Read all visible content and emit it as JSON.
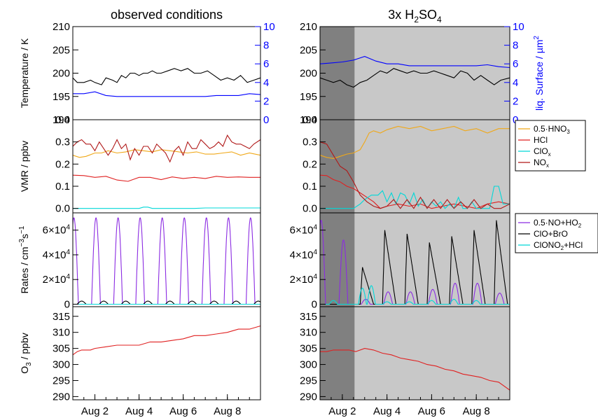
{
  "chart_data": [
    {
      "type": "line",
      "panel": "temperature",
      "column_titles": {
        "left": "observed conditions",
        "right_main": "3x H",
        "right_sub1": "2",
        "right_main2": "SO",
        "right_sub2": "4"
      },
      "ylabel": "Temperature / K",
      "ylim": [
        190,
        210
      ],
      "yticks": [
        "190",
        "195",
        "200",
        "205",
        "210"
      ],
      "y2label_main": "liq. Surface / µm",
      "y2label_sup": "2",
      "y2lim": [
        0,
        10
      ],
      "y2ticks": [
        "0",
        "2",
        "4",
        "6",
        "8",
        "10"
      ],
      "colors": {
        "temperature": "#000000",
        "surface": "#0000ff"
      },
      "left": {
        "temperature": {
          "x": [
            0.0,
            0.2,
            0.5,
            0.8,
            1.0,
            1.3,
            1.5,
            1.8,
            2.0,
            2.2,
            2.4,
            2.6,
            2.8,
            3.0,
            3.2,
            3.4,
            3.6,
            3.8,
            4.0,
            4.3,
            4.6,
            4.9,
            5.2,
            5.5,
            5.8,
            6.1,
            6.4,
            6.7,
            7.0,
            7.3,
            7.6,
            7.9,
            8.2,
            8.5
          ],
          "y": [
            199,
            198,
            198,
            198.5,
            198,
            197.5,
            199,
            198.5,
            198,
            199.5,
            199,
            200,
            200,
            199.5,
            200,
            200,
            200.5,
            200,
            200,
            200.5,
            201,
            200.5,
            201,
            200,
            200,
            200.5,
            199.5,
            198.5,
            199,
            198.5,
            199.5,
            198,
            198.5,
            199
          ]
        },
        "surface": {
          "x": [
            0.0,
            0.5,
            1.0,
            1.5,
            2.0,
            2.5,
            3.0,
            3.5,
            4.0,
            4.5,
            5.0,
            5.5,
            6.0,
            6.5,
            7.0,
            7.5,
            8.0,
            8.5
          ],
          "y": [
            2.8,
            2.8,
            3.0,
            2.6,
            2.5,
            2.5,
            2.5,
            2.5,
            2.5,
            2.5,
            2.5,
            2.5,
            2.5,
            2.6,
            2.6,
            2.6,
            2.8,
            2.7
          ]
        }
      },
      "right": {
        "temperature": {
          "x": [
            0.0,
            0.3,
            0.6,
            0.9,
            1.2,
            1.5,
            1.8,
            2.1,
            2.4,
            2.7,
            3.0,
            3.3,
            3.6,
            3.9,
            4.2,
            4.5,
            4.8,
            5.1,
            5.4,
            5.7,
            6.0,
            6.3,
            6.6,
            6.9,
            7.2,
            7.5,
            7.8,
            8.1,
            8.5
          ],
          "y": [
            199,
            198.5,
            198,
            198.5,
            197.5,
            197,
            198,
            198.5,
            199.5,
            200.5,
            200,
            201,
            200.5,
            200,
            200.5,
            200,
            200,
            200.5,
            200,
            199.5,
            199,
            200.5,
            200,
            198.5,
            199.5,
            198.5,
            197.5,
            198.5,
            199
          ]
        },
        "surface": {
          "x": [
            0.0,
            0.5,
            1.0,
            1.5,
            2.0,
            2.5,
            3.0,
            3.5,
            4.0,
            4.5,
            5.0,
            5.5,
            6.0,
            6.5,
            7.0,
            7.5,
            8.0,
            8.5
          ],
          "y": [
            6.0,
            6.1,
            6.2,
            6.4,
            6.8,
            6.3,
            6.0,
            6.0,
            5.8,
            5.8,
            5.8,
            5.8,
            5.8,
            5.8,
            5.8,
            5.9,
            5.7,
            5.6
          ]
        }
      }
    },
    {
      "type": "line",
      "panel": "vmr",
      "ylabel": "VMR / ppbv",
      "ylim": [
        -0.02,
        0.4
      ],
      "yticks": [
        "0.0",
        "0.1",
        "0.2",
        "0.3",
        "0.4"
      ],
      "legend": [
        {
          "pre": "0.5·HNO",
          "sub": "3",
          "color": "#f0a818"
        },
        {
          "pre": "HCl",
          "sub": "",
          "color": "#e02020"
        },
        {
          "pre": "ClO",
          "sub": "x",
          "color": "#00d8d8"
        },
        {
          "pre": "NO",
          "sub": "x",
          "color": "#b01818"
        }
      ],
      "left": {
        "hno3": {
          "x": [
            0,
            0.3,
            0.6,
            1.0,
            1.3,
            1.6,
            2.0,
            2.4,
            2.8,
            3.2,
            3.6,
            4.0,
            4.4,
            4.8,
            5.2,
            5.6,
            6.0,
            6.4,
            6.8,
            7.2,
            7.6,
            8.0,
            8.5
          ],
          "y": [
            0.24,
            0.23,
            0.235,
            0.25,
            0.25,
            0.26,
            0.25,
            0.255,
            0.265,
            0.26,
            0.255,
            0.265,
            0.26,
            0.255,
            0.25,
            0.255,
            0.245,
            0.245,
            0.25,
            0.255,
            0.24,
            0.25,
            0.24
          ]
        },
        "hcl": {
          "x": [
            0,
            0.5,
            1.0,
            1.5,
            2.0,
            2.5,
            3.0,
            3.5,
            4.0,
            4.5,
            5.0,
            5.5,
            6.0,
            6.5,
            7.0,
            7.5,
            8.0,
            8.5
          ],
          "y": [
            0.15,
            0.148,
            0.14,
            0.145,
            0.128,
            0.122,
            0.14,
            0.14,
            0.13,
            0.142,
            0.135,
            0.14,
            0.135,
            0.145,
            0.14,
            0.142,
            0.14,
            0.14
          ]
        },
        "clox": {
          "x": [
            0,
            3.0,
            3.2,
            3.4,
            3.6,
            5.5,
            6.0,
            8.5
          ],
          "y": [
            0,
            0,
            0.006,
            0.006,
            0,
            0,
            0.002,
            0.002
          ]
        },
        "nox": {
          "x": [
            0,
            0.2,
            0.4,
            0.6,
            0.8,
            1.0,
            1.2,
            1.4,
            1.6,
            1.8,
            2.0,
            2.2,
            2.4,
            2.6,
            2.8,
            3.0,
            3.2,
            3.4,
            3.6,
            3.8,
            4.0,
            4.2,
            4.4,
            4.6,
            4.8,
            5.0,
            5.2,
            5.4,
            5.6,
            5.8,
            6.0,
            6.2,
            6.4,
            6.6,
            6.8,
            7.0,
            7.2,
            7.4,
            7.6,
            7.8,
            8.0,
            8.2,
            8.5
          ],
          "y": [
            0.28,
            0.3,
            0.31,
            0.29,
            0.29,
            0.26,
            0.3,
            0.27,
            0.24,
            0.27,
            0.31,
            0.27,
            0.29,
            0.22,
            0.27,
            0.24,
            0.28,
            0.28,
            0.25,
            0.29,
            0.27,
            0.25,
            0.21,
            0.26,
            0.28,
            0.24,
            0.3,
            0.27,
            0.27,
            0.31,
            0.29,
            0.27,
            0.28,
            0.3,
            0.28,
            0.33,
            0.3,
            0.29,
            0.29,
            0.28,
            0.27,
            0.29,
            0.31
          ]
        }
      },
      "right": {
        "hno3": {
          "x": [
            0,
            0.3,
            0.6,
            0.9,
            1.2,
            1.5,
            1.8,
            2.0,
            2.2,
            2.4,
            2.7,
            3.0,
            3.5,
            4.0,
            4.5,
            5.0,
            5.5,
            6.0,
            6.5,
            7.0,
            7.5,
            8.0,
            8.5
          ],
          "y": [
            0.24,
            0.23,
            0.225,
            0.235,
            0.245,
            0.25,
            0.265,
            0.3,
            0.34,
            0.35,
            0.34,
            0.355,
            0.37,
            0.36,
            0.37,
            0.35,
            0.36,
            0.37,
            0.35,
            0.36,
            0.34,
            0.36,
            0.36
          ]
        },
        "hcl": {
          "x": [
            0,
            0.3,
            0.6,
            0.9,
            1.2,
            1.5,
            1.8,
            2.1,
            2.4,
            2.7,
            3.0,
            3.5,
            4.0,
            4.5,
            5.0,
            5.5,
            6.0,
            6.5,
            7.0,
            7.5,
            8.0,
            8.5
          ],
          "y": [
            0.15,
            0.148,
            0.13,
            0.12,
            0.1,
            0.09,
            0.07,
            0.05,
            0.03,
            0.0,
            0.01,
            0.02,
            0.01,
            0.02,
            0.0,
            0.01,
            0.02,
            0.01,
            0.0,
            0.02,
            0.03,
            0.02
          ]
        },
        "clox": {
          "x": [
            0,
            1.5,
            1.8,
            2.0,
            2.3,
            2.6,
            2.8,
            3.0,
            3.2,
            3.4,
            3.6,
            3.8,
            4.0,
            4.2,
            4.4,
            4.6,
            4.8,
            5.0,
            5.2,
            5.4,
            5.6,
            5.8,
            6.0,
            6.2,
            6.4,
            6.6,
            6.8,
            7.0,
            7.2,
            7.4,
            7.6,
            7.8,
            8.0,
            8.2,
            8.5
          ],
          "y": [
            0,
            0,
            0.02,
            0.04,
            0.06,
            0.06,
            0.08,
            0.03,
            0.07,
            0.02,
            0.07,
            0.06,
            0.02,
            0.07,
            0.01,
            0.04,
            0.0,
            0.03,
            0.01,
            0.03,
            0.0,
            0.02,
            0.0,
            0.05,
            0.0,
            0.0,
            0.03,
            0.0,
            0.0,
            0.0,
            0.0,
            0.1,
            0.1,
            0.02,
            0.02
          ]
        },
        "nox": {
          "x": [
            0,
            0.3,
            0.6,
            0.9,
            1.2,
            1.5,
            1.8,
            2.1,
            2.4,
            2.7,
            3.0,
            3.3,
            3.6,
            3.9,
            4.2,
            4.5,
            4.8,
            5.1,
            5.4,
            5.7,
            6.0,
            6.3,
            6.6,
            6.9,
            7.2,
            7.5,
            7.8,
            8.1,
            8.5
          ],
          "y": [
            0.3,
            0.29,
            0.24,
            0.19,
            0.17,
            0.12,
            0.06,
            0.03,
            0.01,
            0.0,
            0.01,
            0.04,
            0.0,
            0.04,
            0.0,
            0.05,
            0.0,
            0.04,
            0.0,
            0.04,
            0.0,
            0.03,
            0.0,
            0.04,
            0.0,
            0.02,
            0.0,
            0.0,
            0.02
          ]
        }
      }
    },
    {
      "type": "line",
      "panel": "rates",
      "ylabel_main": "Rates / cm",
      "ylabel_sup1": "−3",
      "ylabel_main2": "s",
      "ylabel_sup2": "−1",
      "ylim": [
        -2000,
        74000
      ],
      "yticks": [
        {
          "m": "0",
          "e": ""
        },
        {
          "m": "2×10",
          "e": "4"
        },
        {
          "m": "4×10",
          "e": "4"
        },
        {
          "m": "6×10",
          "e": "4"
        }
      ],
      "legend": [
        {
          "pre": "0.5·NO+HO",
          "sub": "2",
          "color": "#8b2be2"
        },
        {
          "pre": "ClO+BrO",
          "sub": "",
          "color": "#000000"
        },
        {
          "pre": "ClONO",
          "sub": "2",
          "post": "+HCl",
          "color": "#00d8d8"
        }
      ],
      "left": {
        "noho2": {
          "peaks": [
            0.05,
            1.05,
            2.05,
            3.05,
            4.05,
            5.05,
            6.05,
            7.05,
            8.05
          ],
          "peak": 70000,
          "halfwidth": 0.2
        },
        "clobro": {
          "peaks": [
            0.4,
            1.4,
            2.4,
            3.4,
            4.4,
            5.4,
            6.4,
            7.4,
            8.4
          ],
          "peak": 2500,
          "halfwidth": 0.2
        },
        "clono2": {
          "x": [
            0,
            8.5
          ],
          "y": [
            0,
            0
          ]
        }
      },
      "right": {
        "noho2": {
          "peaks": [
            0.05,
            1.05,
            2.05,
            3.05,
            4.05,
            5.05,
            6.05,
            7.05,
            8.05
          ],
          "peak_values": [
            68000,
            52000,
            4000,
            10000,
            10000,
            12000,
            17000,
            17000,
            9000
          ],
          "halfwidth": 0.2
        },
        "clobro": {
          "peaks": [
            1.9,
            2.9,
            3.9,
            4.9,
            5.9,
            6.9,
            7.9
          ],
          "peak_values": [
            30000,
            60000,
            57000,
            50000,
            55000,
            60000,
            68000
          ]
        },
        "clono2": {
          "peaks": [
            0.6,
            1.9,
            2.3,
            3.0,
            4.0,
            5.0,
            6.0,
            7.0
          ],
          "peak_values": [
            3000,
            13000,
            15000,
            2000,
            2000,
            3000,
            4000,
            3000
          ],
          "halfwidth": 0.18
        }
      }
    },
    {
      "type": "line",
      "panel": "ozone",
      "ylabel_main": "O",
      "ylabel_sub": "3",
      "ylabel_post": " / ppbv",
      "ylim": [
        289,
        318
      ],
      "yticks": [
        "290",
        "295",
        "300",
        "305",
        "310",
        "315"
      ],
      "xticks": [
        "Aug 2",
        "Aug 4",
        "Aug 6",
        "Aug 8"
      ],
      "xtick_values": [
        1,
        3,
        5,
        7
      ],
      "xlim": [
        0,
        8.5
      ],
      "left": {
        "o3": {
          "x": [
            0,
            0.2,
            0.4,
            0.8,
            1.0,
            1.5,
            2.0,
            2.5,
            3.0,
            3.5,
            4.0,
            4.5,
            5.0,
            5.5,
            6.0,
            6.5,
            7.0,
            7.5,
            8.0,
            8.5
          ],
          "y": [
            303,
            304,
            304.5,
            304.5,
            305,
            305.5,
            306,
            306,
            306,
            307,
            307,
            307.5,
            308,
            309,
            309,
            309.5,
            310,
            311,
            311,
            312
          ]
        }
      },
      "right": {
        "o3": {
          "x": [
            0,
            0.3,
            0.6,
            1.0,
            1.3,
            1.6,
            2.0,
            2.4,
            2.8,
            3.2,
            3.6,
            4.0,
            4.4,
            4.8,
            5.2,
            5.6,
            6.0,
            6.4,
            6.8,
            7.2,
            7.6,
            8.0,
            8.5
          ],
          "y": [
            304,
            304,
            304.5,
            304.5,
            304.5,
            304,
            305,
            304.5,
            303.5,
            303,
            302,
            301.5,
            301,
            300,
            299.5,
            298.5,
            298,
            297,
            296.5,
            296,
            295,
            294.5,
            292
          ]
        }
      }
    }
  ],
  "shading": {
    "dark_until": 1.55,
    "dark": "#808080",
    "light": "#c8c8c8"
  }
}
